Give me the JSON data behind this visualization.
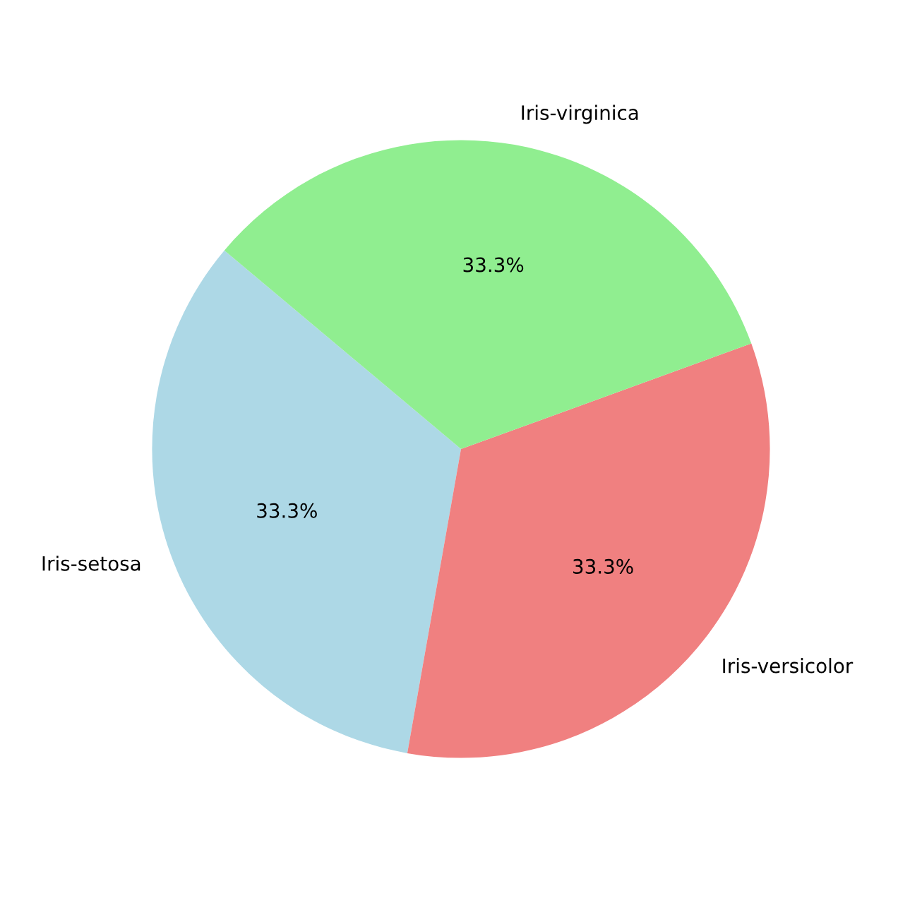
{
  "chart_data": {
    "type": "pie",
    "categories": [
      "Iris-setosa",
      "Iris-versicolor",
      "Iris-virginica"
    ],
    "values": [
      33.33,
      33.33,
      33.34
    ],
    "value_labels": [
      "33.3%",
      "33.3%",
      "33.3%"
    ],
    "colors": [
      "#add8e6",
      "#f08080",
      "#90ee90"
    ]
  }
}
